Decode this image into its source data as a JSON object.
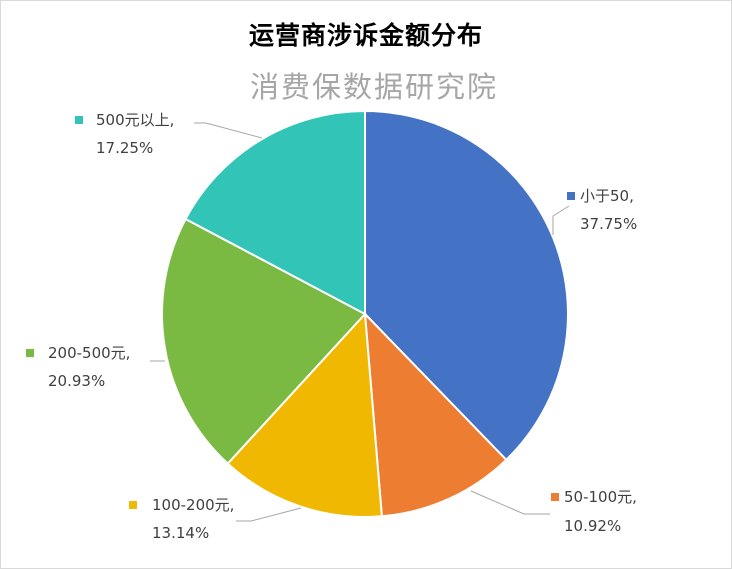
{
  "chart_data": {
    "type": "pie",
    "title": "运营商涉诉金额分布",
    "watermark": "消费保数据研究院",
    "start_angle": "12 o'clock",
    "direction": "clockwise",
    "labels": [
      "小于50",
      "50-100元",
      "100-200元",
      "200-500元",
      "500元以上"
    ],
    "values": [
      37.75,
      10.92,
      13.14,
      20.93,
      17.25
    ],
    "value_labels": [
      "37.75%",
      "10.92%",
      "13.14%",
      "20.93%",
      "17.25%"
    ],
    "colors": [
      "#4472c4",
      "#ed7d31",
      "#f0b800",
      "#7aba43",
      "#33c4b8"
    ]
  }
}
